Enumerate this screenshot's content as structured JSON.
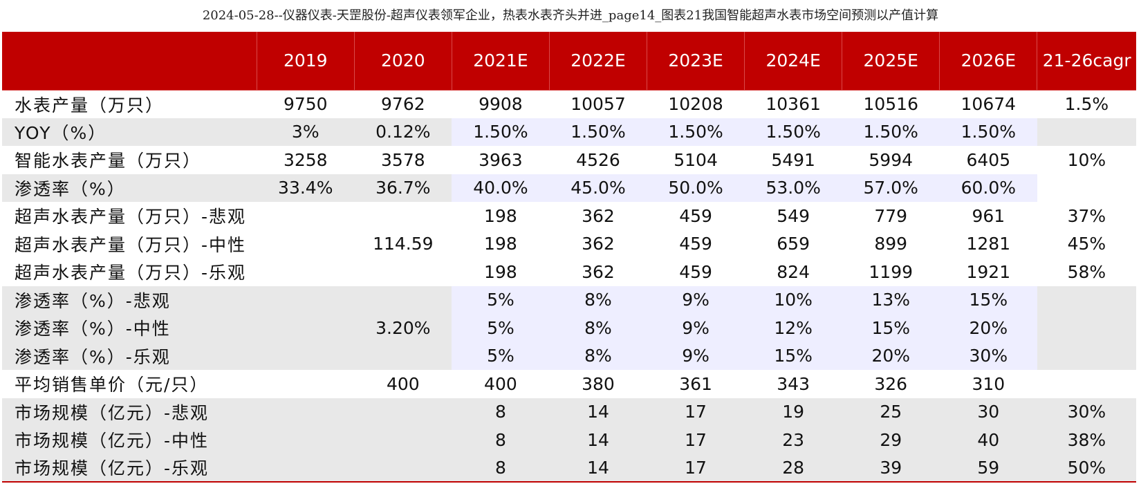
{
  "title": "2024-05-28--仪器仪表-天罡股份-超声仪表领军企业，热表水表齐头并进_page14_图表21我国智能超声水表市场空间预测以产值计算",
  "table": {
    "headers": [
      "",
      "2019",
      "2020",
      "2021E",
      "2022E",
      "2023E",
      "2024E",
      "2025E",
      "2026E",
      "21-26cagr"
    ],
    "rows": [
      {
        "label": "水表产量（万只）",
        "values": [
          "9750",
          "9762",
          "9908",
          "10057",
          "10208",
          "10361",
          "10516",
          "10674",
          "1.5%"
        ]
      },
      {
        "label": "YOY（%）",
        "values": [
          "3%",
          "0.12%",
          "1.50%",
          "1.50%",
          "1.50%",
          "1.50%",
          "1.50%",
          "1.50%",
          ""
        ]
      },
      {
        "label": "智能水表产量（万只）",
        "values": [
          "3258",
          "3578",
          "3963",
          "4526",
          "5104",
          "5491",
          "5994",
          "6405",
          "10%"
        ]
      },
      {
        "label": "渗透率（%）",
        "values": [
          "33.4%",
          "36.7%",
          "40.0%",
          "45.0%",
          "50.0%",
          "53.0%",
          "57.0%",
          "60.0%",
          ""
        ]
      },
      {
        "label": "超声水表产量（万只）-悲观",
        "values": [
          "",
          "",
          "198",
          "362",
          "459",
          "549",
          "779",
          "961",
          "37%"
        ]
      },
      {
        "label": "超声水表产量（万只）-中性",
        "values": [
          "",
          "114.59",
          "198",
          "362",
          "459",
          "659",
          "899",
          "1281",
          "45%"
        ]
      },
      {
        "label": "超声水表产量（万只）-乐观",
        "values": [
          "",
          "",
          "198",
          "362",
          "459",
          "824",
          "1199",
          "1921",
          "58%"
        ]
      },
      {
        "label": "渗透率（%）-悲观",
        "values": [
          "",
          "",
          "5%",
          "8%",
          "9%",
          "10%",
          "13%",
          "15%",
          ""
        ]
      },
      {
        "label": "渗透率（%）-中性",
        "values": [
          "",
          "3.20%",
          "5%",
          "8%",
          "9%",
          "12%",
          "15%",
          "20%",
          ""
        ]
      },
      {
        "label": "渗透率（%）-乐观",
        "values": [
          "",
          "",
          "5%",
          "8%",
          "9%",
          "15%",
          "20%",
          "30%",
          ""
        ]
      },
      {
        "label": "平均销售单价（元/只）",
        "values": [
          "",
          "400",
          "400",
          "380",
          "361",
          "343",
          "326",
          "310",
          ""
        ]
      },
      {
        "label": "市场规模（亿元）-悲观",
        "values": [
          "",
          "",
          "8",
          "14",
          "17",
          "19",
          "25",
          "30",
          "30%"
        ]
      },
      {
        "label": "市场规模（亿元）-中性",
        "values": [
          "",
          "",
          "8",
          "14",
          "17",
          "23",
          "29",
          "40",
          "38%"
        ]
      },
      {
        "label": "市场规模（亿元）-乐观",
        "values": [
          "",
          "",
          "8",
          "14",
          "17",
          "28",
          "39",
          "59",
          "50%"
        ]
      }
    ]
  },
  "colors": {
    "header_bg": "#c00000",
    "header_text": "#ffffff",
    "row_gray": "#e8e8e8",
    "row_lavender": "#eeeeff",
    "row_white": "#ffffff"
  }
}
